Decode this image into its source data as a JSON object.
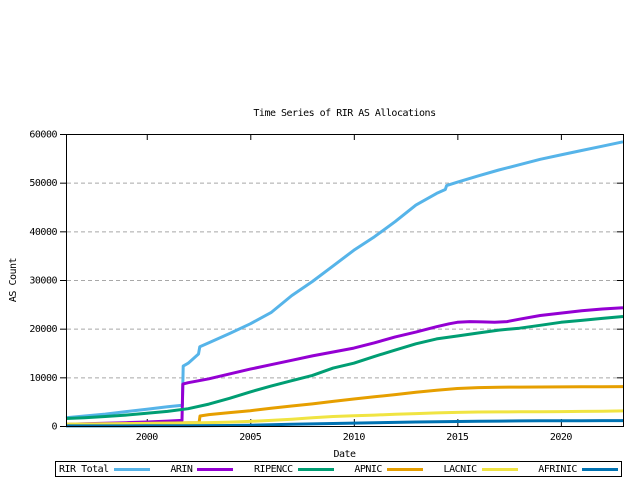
{
  "chart_data": {
    "type": "line",
    "title": "Time Series of RIR AS Allocations",
    "xlabel": "Date",
    "ylabel": "AS Count",
    "xlim": [
      1996.1,
      2023.0
    ],
    "ylim": [
      0,
      60000
    ],
    "xticks": [
      2000,
      2005,
      2010,
      2015,
      2020
    ],
    "yticks": [
      0,
      10000,
      20000,
      30000,
      40000,
      50000,
      60000
    ],
    "grid": "horizontal-dashed",
    "grid_color": "#a8a8a8",
    "axis_color": "#000000",
    "legend_position": "bottom",
    "series": [
      {
        "name": "RIR Total",
        "color": "#56b4e9",
        "points": [
          [
            1996.1,
            1700
          ],
          [
            1997,
            2050
          ],
          [
            1998,
            2450
          ],
          [
            1999,
            2950
          ],
          [
            2000,
            3450
          ],
          [
            2001,
            3950
          ],
          [
            2001.72,
            4250
          ],
          [
            2001.76,
            12300
          ],
          [
            2002,
            12900
          ],
          [
            2002.5,
            14800
          ],
          [
            2002.56,
            16300
          ],
          [
            2003,
            17100
          ],
          [
            2004,
            19000
          ],
          [
            2005,
            21000
          ],
          [
            2006,
            23300
          ],
          [
            2007,
            26800
          ],
          [
            2008,
            29700
          ],
          [
            2009,
            32900
          ],
          [
            2010,
            36100
          ],
          [
            2011,
            38900
          ],
          [
            2012,
            42000
          ],
          [
            2013,
            45400
          ],
          [
            2014,
            47800
          ],
          [
            2014.42,
            48600
          ],
          [
            2014.48,
            49400
          ],
          [
            2015,
            50100
          ],
          [
            2016,
            51400
          ],
          [
            2017,
            52600
          ],
          [
            2018,
            53700
          ],
          [
            2019,
            54800
          ],
          [
            2020,
            55700
          ],
          [
            2021,
            56600
          ],
          [
            2022,
            57500
          ],
          [
            2023,
            58400
          ]
        ]
      },
      {
        "name": "ARIN",
        "color": "#9400d3",
        "points": [
          [
            1996.1,
            350
          ],
          [
            1997,
            450
          ],
          [
            1998,
            560
          ],
          [
            1999,
            680
          ],
          [
            2000,
            820
          ],
          [
            2001,
            1000
          ],
          [
            2001.7,
            1150
          ],
          [
            2001.74,
            8600
          ],
          [
            2002,
            8900
          ],
          [
            2003,
            9700
          ],
          [
            2004,
            10700
          ],
          [
            2005,
            11700
          ],
          [
            2006,
            12600
          ],
          [
            2007,
            13500
          ],
          [
            2008,
            14400
          ],
          [
            2009,
            15200
          ],
          [
            2010,
            16000
          ],
          [
            2011,
            17100
          ],
          [
            2012,
            18300
          ],
          [
            2013,
            19300
          ],
          [
            2014,
            20400
          ],
          [
            2014.6,
            21000
          ],
          [
            2015,
            21300
          ],
          [
            2015.6,
            21450
          ],
          [
            2016.2,
            21400
          ],
          [
            2016.8,
            21300
          ],
          [
            2017.4,
            21450
          ],
          [
            2018,
            21950
          ],
          [
            2019,
            22700
          ],
          [
            2020,
            23200
          ],
          [
            2021,
            23700
          ],
          [
            2022,
            24050
          ],
          [
            2023,
            24300
          ]
        ]
      },
      {
        "name": "RIPENCC",
        "color": "#009e73",
        "points": [
          [
            1996.1,
            1550
          ],
          [
            1997,
            1700
          ],
          [
            1998,
            1950
          ],
          [
            1999,
            2250
          ],
          [
            2000,
            2600
          ],
          [
            2001,
            3000
          ],
          [
            2002,
            3550
          ],
          [
            2003,
            4500
          ],
          [
            2004,
            5700
          ],
          [
            2005,
            7000
          ],
          [
            2006,
            8200
          ],
          [
            2007,
            9300
          ],
          [
            2008,
            10400
          ],
          [
            2009,
            11900
          ],
          [
            2010,
            12900
          ],
          [
            2011,
            14300
          ],
          [
            2012,
            15600
          ],
          [
            2013,
            16900
          ],
          [
            2014,
            17900
          ],
          [
            2015,
            18500
          ],
          [
            2016,
            19100
          ],
          [
            2017,
            19700
          ],
          [
            2018,
            20100
          ],
          [
            2019,
            20700
          ],
          [
            2020,
            21300
          ],
          [
            2021,
            21700
          ],
          [
            2022,
            22100
          ],
          [
            2023,
            22500
          ]
        ]
      },
      {
        "name": "APNIC",
        "color": "#e69f00",
        "points": [
          [
            1996.1,
            280
          ],
          [
            1998,
            400
          ],
          [
            2000,
            520
          ],
          [
            2002,
            650
          ],
          [
            2002.53,
            700
          ],
          [
            2002.57,
            2050
          ],
          [
            2003,
            2350
          ],
          [
            2004,
            2750
          ],
          [
            2005,
            3150
          ],
          [
            2006,
            3650
          ],
          [
            2007,
            4100
          ],
          [
            2008,
            4550
          ],
          [
            2009,
            5050
          ],
          [
            2010,
            5550
          ],
          [
            2011,
            6000
          ],
          [
            2012,
            6450
          ],
          [
            2013,
            6950
          ],
          [
            2014,
            7350
          ],
          [
            2015,
            7700
          ],
          [
            2016,
            7900
          ],
          [
            2017,
            7980
          ],
          [
            2018,
            8000
          ],
          [
            2019,
            8020
          ],
          [
            2020,
            8030
          ],
          [
            2021,
            8050
          ],
          [
            2022,
            8070
          ],
          [
            2023,
            8100
          ]
        ]
      },
      {
        "name": "LACNIC",
        "color": "#f0e442",
        "points": [
          [
            1996.1,
            400
          ],
          [
            1998,
            460
          ],
          [
            2000,
            530
          ],
          [
            2002,
            620
          ],
          [
            2003,
            700
          ],
          [
            2004,
            810
          ],
          [
            2005,
            950
          ],
          [
            2006,
            1150
          ],
          [
            2007,
            1400
          ],
          [
            2008,
            1700
          ],
          [
            2009,
            1950
          ],
          [
            2010,
            2100
          ],
          [
            2011,
            2250
          ],
          [
            2012,
            2400
          ],
          [
            2013,
            2550
          ],
          [
            2014,
            2700
          ],
          [
            2015,
            2800
          ],
          [
            2016,
            2870
          ],
          [
            2017,
            2900
          ],
          [
            2018,
            2920
          ],
          [
            2019,
            2940
          ],
          [
            2020,
            2960
          ],
          [
            2021,
            3000
          ],
          [
            2022,
            3050
          ],
          [
            2023,
            3100
          ]
        ]
      },
      {
        "name": "AFRINIC",
        "color": "#0072b2",
        "points": [
          [
            1996.1,
            20
          ],
          [
            2000,
            40
          ],
          [
            2002,
            60
          ],
          [
            2004,
            100
          ],
          [
            2005,
            160
          ],
          [
            2006,
            250
          ],
          [
            2007,
            350
          ],
          [
            2008,
            430
          ],
          [
            2009,
            520
          ],
          [
            2010,
            600
          ],
          [
            2011,
            680
          ],
          [
            2012,
            750
          ],
          [
            2013,
            820
          ],
          [
            2014,
            880
          ],
          [
            2015,
            930
          ],
          [
            2016,
            980
          ],
          [
            2017,
            1010
          ],
          [
            2018,
            1040
          ],
          [
            2019,
            1060
          ],
          [
            2020,
            1080
          ],
          [
            2021,
            1090
          ],
          [
            2022,
            1100
          ],
          [
            2023,
            1100
          ]
        ]
      }
    ]
  }
}
